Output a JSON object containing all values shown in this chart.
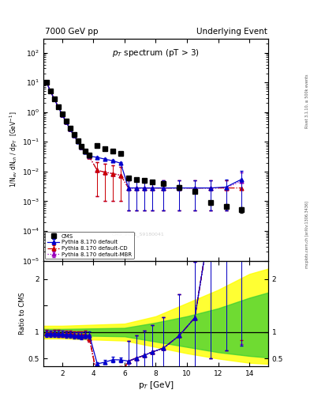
{
  "title_left": "7000 GeV pp",
  "title_right": "Underlying Event",
  "plot_title": "p$_T$ spectrum (pT > 3)",
  "ylabel_main": "1/N$_{ev}$ dN$_{ch}$ / dp$_T$  [GeV$^{-1}$]",
  "ylabel_ratio": "Ratio to CMS",
  "xlabel": "p$_T$ [GeV]",
  "watermark": "CMS_2011_S9180041",
  "right_label": "mcplots.cern.ch [arXiv:1306.3436]",
  "right_label2": "Rivet 3.1.10, ≥ 500k events",
  "cms_x": [
    1.0,
    1.25,
    1.5,
    1.75,
    2.0,
    2.25,
    2.5,
    2.75,
    3.0,
    3.25,
    3.5,
    3.75,
    4.25,
    4.75,
    5.25,
    5.75,
    6.25,
    6.75,
    7.25,
    7.75,
    8.5,
    9.5,
    10.5,
    11.5,
    12.5,
    13.5
  ],
  "cms_y": [
    10.3,
    5.2,
    2.8,
    1.55,
    0.85,
    0.5,
    0.28,
    0.175,
    0.11,
    0.072,
    0.05,
    0.035,
    0.075,
    0.06,
    0.048,
    0.04,
    0.0062,
    0.0055,
    0.005,
    0.0045,
    0.004,
    0.003,
    0.0022,
    0.0009,
    0.00068,
    0.00052
  ],
  "cms_yerr": [
    0.5,
    0.25,
    0.14,
    0.08,
    0.044,
    0.025,
    0.014,
    0.009,
    0.006,
    0.004,
    0.003,
    0.002,
    0.005,
    0.004,
    0.004,
    0.003,
    0.0008,
    0.0007,
    0.0007,
    0.0006,
    0.0005,
    0.0004,
    0.0003,
    0.00015,
    0.00012,
    0.0001
  ],
  "py_default_x": [
    1.0,
    1.25,
    1.5,
    1.75,
    2.0,
    2.25,
    2.5,
    2.75,
    3.0,
    3.25,
    3.5,
    3.75,
    4.25,
    4.75,
    5.25,
    5.75,
    6.25,
    6.75,
    7.25,
    7.75,
    8.5,
    9.5,
    10.5,
    11.5,
    12.5,
    13.5
  ],
  "py_default_y": [
    10.0,
    5.05,
    2.72,
    1.5,
    0.82,
    0.476,
    0.268,
    0.165,
    0.103,
    0.067,
    0.047,
    0.033,
    0.03,
    0.026,
    0.023,
    0.019,
    0.0028,
    0.0028,
    0.0028,
    0.0028,
    0.0028,
    0.0028,
    0.0028,
    0.0028,
    0.003,
    0.0055
  ],
  "py_default_yerr_lo": [
    0.35,
    0.18,
    0.1,
    0.055,
    0.03,
    0.018,
    0.01,
    0.006,
    0.004,
    0.0025,
    0.0018,
    0.0013,
    0.0015,
    0.0014,
    0.0013,
    0.0011,
    0.0023,
    0.0023,
    0.0023,
    0.0023,
    0.0023,
    0.0023,
    0.0023,
    0.0023,
    0.0025,
    0.005
  ],
  "py_default_yerr_hi": [
    0.35,
    0.18,
    0.1,
    0.055,
    0.03,
    0.018,
    0.01,
    0.006,
    0.004,
    0.0025,
    0.0018,
    0.0013,
    0.0015,
    0.0014,
    0.0013,
    0.0011,
    0.0023,
    0.0023,
    0.0023,
    0.0023,
    0.0023,
    0.0023,
    0.0023,
    0.0023,
    0.0025,
    0.005
  ],
  "py_cd_x": [
    1.0,
    1.25,
    1.5,
    1.75,
    2.0,
    2.25,
    2.5,
    2.75,
    3.0,
    3.25,
    3.5,
    3.75,
    4.25,
    4.75,
    5.25,
    5.75,
    6.25,
    6.75,
    7.25,
    7.75,
    8.5,
    9.5,
    10.5,
    11.5,
    12.5,
    13.5
  ],
  "py_cd_y": [
    10.1,
    5.08,
    2.74,
    1.51,
    0.825,
    0.482,
    0.271,
    0.168,
    0.105,
    0.068,
    0.048,
    0.031,
    0.011,
    0.0095,
    0.0085,
    0.0075,
    0.0028,
    0.0028,
    0.0028,
    0.0028,
    0.0028,
    0.0028,
    0.0028,
    0.0028,
    0.0028,
    0.0028
  ],
  "py_cd_yerr_lo": [
    0.35,
    0.18,
    0.1,
    0.055,
    0.03,
    0.018,
    0.01,
    0.006,
    0.004,
    0.0025,
    0.0018,
    0.0013,
    0.0095,
    0.0085,
    0.0075,
    0.0065,
    0.0023,
    0.0023,
    0.0023,
    0.0023,
    0.0023,
    0.0023,
    0.0023,
    0.0023,
    0.0023,
    0.0023
  ],
  "py_cd_yerr_hi": [
    0.35,
    0.18,
    0.1,
    0.055,
    0.03,
    0.018,
    0.01,
    0.006,
    0.004,
    0.0025,
    0.0018,
    0.0013,
    0.0095,
    0.0085,
    0.0075,
    0.0065,
    0.0023,
    0.0023,
    0.0023,
    0.0023,
    0.0023,
    0.0023,
    0.0023,
    0.0023,
    0.0023,
    0.0023
  ],
  "py_mbr_x": [
    1.0,
    1.25,
    1.5,
    1.75,
    2.0,
    2.25,
    2.5,
    2.75,
    3.0,
    3.25,
    3.5,
    3.75,
    4.25,
    4.75,
    5.25,
    5.75,
    6.25,
    6.75,
    7.25,
    7.75,
    8.5,
    9.5,
    10.5,
    11.5,
    12.5,
    13.5
  ],
  "py_mbr_y": [
    10.1,
    5.08,
    2.74,
    1.51,
    0.825,
    0.482,
    0.271,
    0.168,
    0.105,
    0.068,
    0.048,
    0.031,
    0.011,
    0.0095,
    0.0085,
    0.0075,
    0.0028,
    0.0028,
    0.0028,
    0.0028,
    0.0028,
    0.0028,
    0.0028,
    0.0028,
    0.0028,
    0.0048
  ],
  "py_mbr_yerr_lo": [
    0.35,
    0.18,
    0.1,
    0.055,
    0.03,
    0.018,
    0.01,
    0.006,
    0.004,
    0.0025,
    0.0018,
    0.0013,
    0.0095,
    0.0085,
    0.0075,
    0.0065,
    0.0023,
    0.0023,
    0.0023,
    0.0023,
    0.0023,
    0.0023,
    0.0023,
    0.0023,
    0.0023,
    0.0043
  ],
  "py_mbr_yerr_hi": [
    0.35,
    0.18,
    0.1,
    0.055,
    0.03,
    0.018,
    0.01,
    0.006,
    0.004,
    0.0025,
    0.0018,
    0.0013,
    0.0095,
    0.0085,
    0.0075,
    0.0065,
    0.0023,
    0.0023,
    0.0023,
    0.0023,
    0.0023,
    0.0023,
    0.0023,
    0.0023,
    0.0023,
    0.0043
  ],
  "color_cms": "#000000",
  "color_default": "#0000cc",
  "color_cd": "#cc0000",
  "color_mbr": "#9900bb",
  "xlim": [
    0.8,
    15.2
  ],
  "ylim_main": [
    1e-05,
    300
  ],
  "ylim_ratio": [
    0.35,
    2.35
  ],
  "band_yellow_x": [
    0.8,
    2.0,
    4.0,
    6.0,
    8.0,
    10.0,
    12.0,
    14.0,
    15.2
  ],
  "band_yellow_ylo": [
    0.88,
    0.88,
    0.86,
    0.84,
    0.72,
    0.6,
    0.5,
    0.42,
    0.4
  ],
  "band_yellow_yhi": [
    1.12,
    1.12,
    1.14,
    1.16,
    1.3,
    1.55,
    1.8,
    2.1,
    2.2
  ],
  "band_green_x": [
    0.8,
    2.0,
    4.0,
    6.0,
    8.0,
    10.0,
    12.0,
    14.0,
    15.2
  ],
  "band_green_ylo": [
    0.94,
    0.94,
    0.93,
    0.92,
    0.82,
    0.72,
    0.62,
    0.55,
    0.52
  ],
  "band_green_yhi": [
    1.06,
    1.06,
    1.07,
    1.08,
    1.18,
    1.3,
    1.45,
    1.65,
    1.75
  ]
}
